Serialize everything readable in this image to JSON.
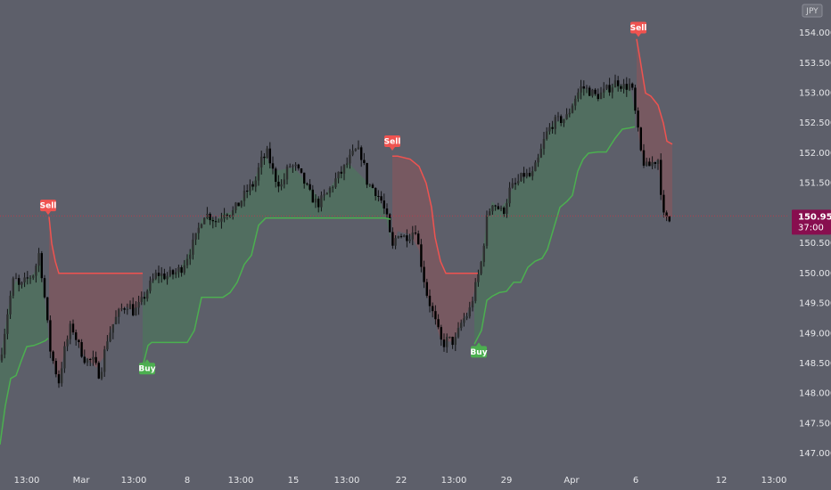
{
  "chart_data": {
    "type": "candlestick",
    "currency_badge": "JPY",
    "ylim": [
      146.75,
      154.55
    ],
    "y_ticks": [
      "147.000",
      "147.500",
      "148.000",
      "148.500",
      "149.000",
      "149.500",
      "150.000",
      "150.500",
      "151.000",
      "151.500",
      "152.000",
      "152.500",
      "153.000",
      "153.500",
      "154.000"
    ],
    "x_ticks": [
      "13:00",
      "Mar",
      "13:00",
      "8",
      "13:00",
      "15",
      "13:00",
      "22",
      "13:00",
      "29",
      "Apr",
      "6",
      "12",
      "13:00"
    ],
    "last_price": {
      "price": "150.956",
      "countdown": "37:00"
    },
    "colors": {
      "bull": "#2e3030",
      "bear": "#000000",
      "up": "#4caf50",
      "down": "#ef5350",
      "band_up": "#3c8c4c",
      "band_down": "#a85050",
      "price_line": "#b04050",
      "badge": "#880e4f"
    },
    "series": [
      {
        "name": "trend_up",
        "values": [
          [
            0,
            147.15
          ],
          [
            6,
            147.8
          ],
          [
            12,
            148.25
          ],
          [
            18,
            148.3
          ],
          [
            24,
            148.55
          ],
          [
            30,
            148.78
          ],
          [
            38,
            148.8
          ],
          [
            45,
            148.84
          ],
          [
            51,
            148.88
          ],
          [
            54,
            148.92
          ]
        ]
      },
      {
        "name": "trend_down",
        "values": [
          [
            55,
            150.94
          ],
          [
            58,
            150.5
          ],
          [
            62,
            150.2
          ],
          [
            66,
            150.0
          ],
          [
            72,
            150.0
          ],
          [
            82,
            150.0
          ],
          [
            92,
            150.0
          ],
          [
            100,
            150.0
          ],
          [
            108,
            150.0
          ],
          [
            116,
            150.0
          ],
          [
            124,
            150.0
          ],
          [
            132,
            150.0
          ],
          [
            140,
            150.0
          ],
          [
            148,
            150.0
          ],
          [
            155,
            150.0
          ],
          [
            160,
            150.0
          ]
        ]
      },
      {
        "name": "trend_up",
        "values": [
          [
            160,
            148.45
          ],
          [
            166,
            148.8
          ],
          [
            170,
            148.85
          ],
          [
            178,
            148.85
          ],
          [
            186,
            148.85
          ],
          [
            194,
            148.85
          ],
          [
            202,
            148.85
          ],
          [
            210,
            148.85
          ],
          [
            218,
            149.05
          ],
          [
            226,
            149.6
          ],
          [
            234,
            149.6
          ],
          [
            242,
            149.6
          ],
          [
            250,
            149.6
          ],
          [
            258,
            149.68
          ],
          [
            266,
            149.85
          ],
          [
            274,
            150.15
          ],
          [
            282,
            150.3
          ],
          [
            290,
            150.8
          ],
          [
            298,
            150.92
          ],
          [
            306,
            150.92
          ],
          [
            330,
            150.92
          ],
          [
            360,
            150.92
          ],
          [
            390,
            150.92
          ],
          [
            420,
            150.92
          ],
          [
            432,
            150.92
          ],
          [
            438,
            150.9
          ]
        ]
      },
      {
        "name": "trend_down",
        "values": [
          [
            440,
            151.95
          ],
          [
            446,
            151.95
          ],
          [
            460,
            151.9
          ],
          [
            470,
            151.78
          ],
          [
            478,
            151.5
          ],
          [
            484,
            151.1
          ],
          [
            488,
            150.6
          ],
          [
            494,
            150.2
          ],
          [
            500,
            150.0
          ],
          [
            508,
            150.0
          ],
          [
            518,
            150.0
          ],
          [
            528,
            150.0
          ],
          [
            536,
            150.0
          ]
        ]
      },
      {
        "name": "trend_up",
        "values": [
          [
            532,
            148.82
          ],
          [
            540,
            149.05
          ],
          [
            546,
            149.55
          ],
          [
            552,
            149.62
          ],
          [
            560,
            149.68
          ],
          [
            568,
            149.7
          ],
          [
            576,
            149.85
          ],
          [
            584,
            149.85
          ],
          [
            592,
            150.1
          ],
          [
            600,
            150.2
          ],
          [
            608,
            150.25
          ],
          [
            614,
            150.4
          ],
          [
            620,
            150.7
          ],
          [
            628,
            151.1
          ],
          [
            636,
            151.2
          ],
          [
            642,
            151.3
          ],
          [
            648,
            151.7
          ],
          [
            654,
            151.9
          ],
          [
            660,
            152.0
          ],
          [
            670,
            152.02
          ],
          [
            680,
            152.02
          ],
          [
            690,
            152.25
          ],
          [
            698,
            152.4
          ],
          [
            706,
            152.42
          ],
          [
            712,
            152.44
          ]
        ]
      },
      {
        "name": "trend_down",
        "values": [
          [
            714,
            153.9
          ],
          [
            718,
            153.55
          ],
          [
            724,
            153.0
          ],
          [
            730,
            152.95
          ],
          [
            738,
            152.8
          ],
          [
            744,
            152.5
          ],
          [
            748,
            152.2
          ],
          [
            754,
            152.15
          ]
        ]
      }
    ],
    "signals": [
      {
        "label": "Sell",
        "x": 54,
        "price": 150.96,
        "dir": "sell"
      },
      {
        "label": "Buy",
        "x": 165,
        "price": 148.6,
        "dir": "buy"
      },
      {
        "label": "Sell",
        "x": 440,
        "price": 152.03,
        "dir": "sell"
      },
      {
        "label": "Buy",
        "x": 537,
        "price": 148.88,
        "dir": "buy"
      },
      {
        "label": "Sell",
        "x": 716,
        "price": 153.92,
        "dir": "sell"
      }
    ],
    "close_path": [
      [
        0,
        148.55
      ],
      [
        10,
        149.5
      ],
      [
        16,
        149.95
      ],
      [
        22,
        149.75
      ],
      [
        30,
        149.9
      ],
      [
        38,
        150.0
      ],
      [
        44,
        150.35
      ],
      [
        50,
        149.6
      ],
      [
        56,
        148.75
      ],
      [
        62,
        148.4
      ],
      [
        66,
        148.2
      ],
      [
        72,
        148.7
      ],
      [
        80,
        149.15
      ],
      [
        88,
        148.8
      ],
      [
        96,
        148.55
      ],
      [
        104,
        148.55
      ],
      [
        112,
        148.3
      ],
      [
        120,
        148.9
      ],
      [
        128,
        149.2
      ],
      [
        136,
        149.4
      ],
      [
        144,
        149.5
      ],
      [
        150,
        149.35
      ],
      [
        158,
        149.5
      ],
      [
        166,
        149.75
      ],
      [
        176,
        150.0
      ],
      [
        186,
        149.95
      ],
      [
        196,
        150.0
      ],
      [
        204,
        150.1
      ],
      [
        212,
        150.35
      ],
      [
        220,
        150.6
      ],
      [
        228,
        151.0
      ],
      [
        236,
        150.95
      ],
      [
        244,
        150.85
      ],
      [
        252,
        151.05
      ],
      [
        260,
        151.0
      ],
      [
        270,
        151.2
      ],
      [
        278,
        151.4
      ],
      [
        286,
        151.5
      ],
      [
        292,
        151.85
      ],
      [
        300,
        152.0
      ],
      [
        308,
        151.6
      ],
      [
        316,
        151.45
      ],
      [
        324,
        151.8
      ],
      [
        332,
        151.75
      ],
      [
        340,
        151.55
      ],
      [
        348,
        151.3
      ],
      [
        356,
        151.15
      ],
      [
        366,
        151.3
      ],
      [
        376,
        151.55
      ],
      [
        384,
        151.7
      ],
      [
        392,
        151.9
      ],
      [
        400,
        152.05
      ],
      [
        406,
        151.95
      ],
      [
        412,
        151.5
      ],
      [
        420,
        151.4
      ],
      [
        428,
        151.2
      ],
      [
        434,
        150.9
      ],
      [
        440,
        150.4
      ],
      [
        446,
        150.7
      ],
      [
        452,
        150.6
      ],
      [
        460,
        150.65
      ],
      [
        466,
        150.75
      ],
      [
        472,
        150.2
      ],
      [
        478,
        149.7
      ],
      [
        484,
        149.4
      ],
      [
        490,
        149.1
      ],
      [
        496,
        148.8
      ],
      [
        502,
        148.9
      ],
      [
        510,
        148.85
      ],
      [
        518,
        149.2
      ],
      [
        526,
        149.35
      ],
      [
        532,
        149.7
      ],
      [
        540,
        150.2
      ],
      [
        546,
        150.9
      ],
      [
        552,
        151.2
      ],
      [
        558,
        151.1
      ],
      [
        564,
        151.0
      ],
      [
        572,
        151.4
      ],
      [
        580,
        151.5
      ],
      [
        588,
        151.65
      ],
      [
        596,
        151.6
      ],
      [
        604,
        151.9
      ],
      [
        612,
        152.3
      ],
      [
        620,
        152.5
      ],
      [
        628,
        152.55
      ],
      [
        636,
        152.6
      ],
      [
        644,
        152.9
      ],
      [
        652,
        153.1
      ],
      [
        660,
        153.05
      ],
      [
        668,
        152.95
      ],
      [
        676,
        153.0
      ],
      [
        684,
        153.1
      ],
      [
        692,
        153.2
      ],
      [
        700,
        153.1
      ],
      [
        708,
        153.15
      ],
      [
        714,
        152.5
      ],
      [
        720,
        151.9
      ],
      [
        726,
        151.75
      ],
      [
        732,
        151.85
      ],
      [
        738,
        151.9
      ],
      [
        744,
        150.95
      ],
      [
        750,
        150.85
      ],
      [
        754,
        150.96
      ]
    ]
  }
}
